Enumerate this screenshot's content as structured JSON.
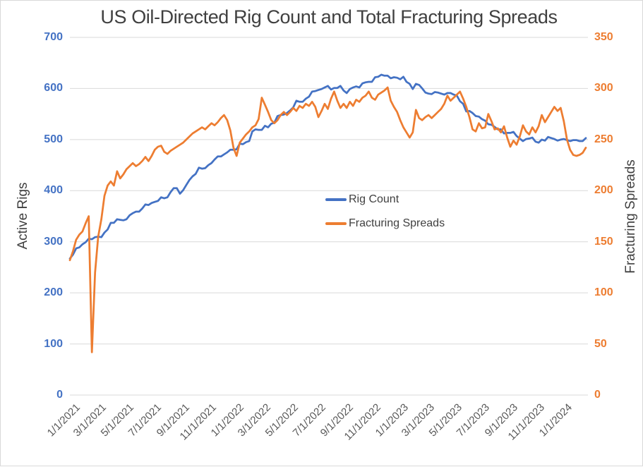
{
  "colors": {
    "rig_count_blue": "#4472C4",
    "frac_spread_orange": "#ED7D31",
    "grid": "#D9D9D9",
    "title_text": "#404040",
    "x_tick_text": "#595959",
    "background": "#FFFFFF"
  },
  "chart_data": {
    "type": "line",
    "title": "US Oil-Directed Rig Count and Total Fracturing Spreads",
    "ylabel_left": "Active Rigs",
    "ylabel_right": "Fracturing Spreads",
    "left_axis": {
      "min": 0,
      "max": 700,
      "step": 100,
      "ticks_top_to_bottom": [
        "700",
        "600",
        "500",
        "400",
        "300",
        "200",
        "100",
        "0"
      ]
    },
    "right_axis": {
      "min": 0,
      "max": 350,
      "step": 50,
      "ticks_top_to_bottom": [
        "350",
        "300",
        "250",
        "200",
        "150",
        "100",
        "50",
        "0"
      ]
    },
    "x_description": "weekly data from 1/1/2021 through early March 2024",
    "n_points": 165,
    "grid": "horizontal-only",
    "legend_position": "inside-center",
    "x_ticks": [
      {
        "label": "1/1/2021",
        "week": 0
      },
      {
        "label": "3/1/2021",
        "week": 8.4
      },
      {
        "label": "5/1/2021",
        "week": 17.1
      },
      {
        "label": "7/1/2021",
        "week": 25.9
      },
      {
        "label": "9/1/2021",
        "week": 34.7
      },
      {
        "label": "11/1/2021",
        "week": 43.4
      },
      {
        "label": "1/1/2022",
        "week": 52.1
      },
      {
        "label": "3/1/2022",
        "week": 60.6
      },
      {
        "label": "5/1/2022",
        "week": 69.3
      },
      {
        "label": "7/1/2022",
        "week": 78.0
      },
      {
        "label": "9/1/2022",
        "week": 86.9
      },
      {
        "label": "11/1/2022",
        "week": 95.6
      },
      {
        "label": "1/1/2023",
        "week": 104.3
      },
      {
        "label": "3/1/2023",
        "week": 112.7
      },
      {
        "label": "5/1/2023",
        "week": 121.4
      },
      {
        "label": "7/1/2023",
        "week": 130.1
      },
      {
        "label": "9/1/2023",
        "week": 139.0
      },
      {
        "label": "11/1/2023",
        "week": 147.7
      },
      {
        "label": "1/1/2024",
        "week": 156.4
      }
    ],
    "series": [
      {
        "name": "Rig Count",
        "axis": "left",
        "color": "#4472C4",
        "values": [
          267,
          275,
          287,
          289,
          295,
          299,
          306,
          305,
          309,
          310,
          309,
          318,
          324,
          337,
          337,
          344,
          343,
          342,
          344,
          352,
          356,
          359,
          359,
          365,
          373,
          372,
          376,
          378,
          380,
          387,
          385,
          387,
          397,
          405,
          405,
          394,
          401,
          411,
          421,
          428,
          433,
          445,
          443,
          444,
          450,
          454,
          461,
          467,
          467,
          471,
          475,
          480,
          480,
          481,
          492,
          491,
          495,
          497,
          516,
          520,
          519,
          519,
          527,
          524,
          531,
          533,
          546,
          548,
          549,
          552,
          557,
          563,
          576,
          574,
          574,
          580,
          584,
          594,
          595,
          597,
          599,
          602,
          605,
          598,
          601,
          601,
          605,
          596,
          591,
          599,
          602,
          604,
          602,
          610,
          612,
          613,
          613,
          622,
          623,
          627,
          625,
          625,
          620,
          622,
          621,
          618,
          623,
          613,
          609,
          599,
          609,
          607,
          600,
          592,
          590,
          589,
          593,
          592,
          590,
          588,
          591,
          591,
          588,
          586,
          575,
          570,
          555,
          556,
          552,
          546,
          545,
          540,
          537,
          530,
          529,
          525,
          520,
          520,
          512,
          513,
          513,
          515,
          507,
          502,
          497,
          501,
          502,
          504,
          496,
          494,
          500,
          498,
          505,
          503,
          501,
          498,
          500,
          501,
          499,
          497,
          499,
          499,
          497,
          497,
          503
        ]
      },
      {
        "name": "Fracturing Spreads",
        "axis": "right",
        "color": "#ED7D31",
        "values": [
          132,
          141,
          152,
          157,
          160,
          168,
          175,
          42,
          120,
          155,
          172,
          195,
          205,
          209,
          205,
          219,
          212,
          216,
          221,
          224,
          227,
          224,
          226,
          229,
          233,
          229,
          234,
          240,
          243,
          244,
          238,
          236,
          239,
          241,
          243,
          245,
          247,
          250,
          253,
          256,
          258,
          260,
          262,
          260,
          263,
          266,
          264,
          267,
          271,
          274,
          269,
          259,
          242,
          234,
          247,
          251,
          255,
          258,
          262,
          264,
          270,
          291,
          284,
          277,
          269,
          266,
          269,
          274,
          277,
          274,
          277,
          281,
          278,
          283,
          281,
          285,
          283,
          287,
          282,
          272,
          278,
          285,
          280,
          290,
          297,
          288,
          281,
          285,
          281,
          287,
          283,
          289,
          287,
          291,
          293,
          297,
          291,
          289,
          294,
          296,
          298,
          301,
          288,
          282,
          277,
          269,
          262,
          257,
          252,
          257,
          279,
          271,
          269,
          272,
          274,
          271,
          274,
          277,
          280,
          285,
          293,
          288,
          291,
          294,
          297,
          290,
          282,
          272,
          260,
          258,
          266,
          261,
          262,
          275,
          268,
          260,
          261,
          257,
          263,
          252,
          243,
          249,
          245,
          253,
          264,
          258,
          255,
          262,
          257,
          263,
          274,
          267,
          272,
          277,
          282,
          278,
          281,
          268,
          250,
          240,
          235,
          234,
          235,
          237,
          242
        ]
      }
    ]
  }
}
